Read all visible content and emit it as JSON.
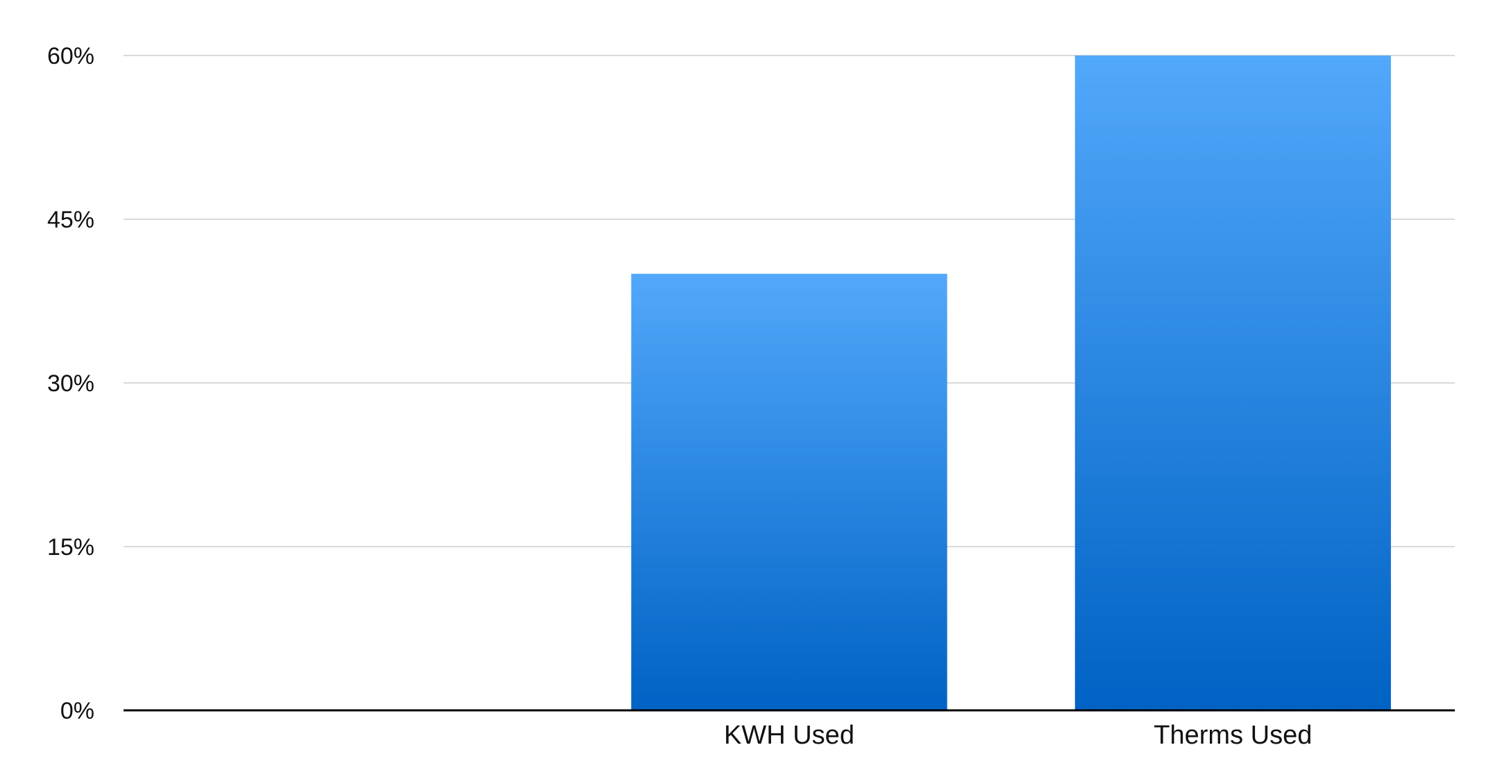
{
  "chart_data": {
    "type": "bar",
    "categories": [
      "",
      "KWH Used",
      "Therms Used"
    ],
    "values": [
      0,
      40,
      60
    ],
    "ylim": [
      0,
      60
    ],
    "yticks": [
      0,
      15,
      30,
      45,
      60
    ],
    "ytick_labels": [
      "0%",
      "15%",
      "30%",
      "45%",
      "60%"
    ],
    "y_unit": "%",
    "grid": true,
    "legend": "none",
    "colors": {
      "bar_top": "#52a8fb",
      "bar_bottom": "#0062c4",
      "grid": "#d9d9d9",
      "axis": "#000000"
    }
  }
}
